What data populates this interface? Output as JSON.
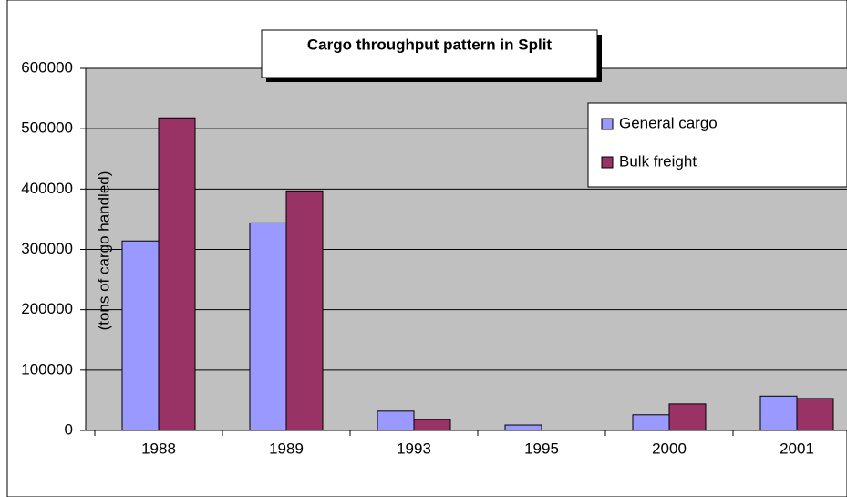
{
  "chart_data": {
    "type": "bar",
    "title": "Cargo throughput pattern in Split",
    "y_label": "(tons of cargo handled)",
    "categories": [
      "1988",
      "1989",
      "1993",
      "1995",
      "2000",
      "2001"
    ],
    "series": [
      {
        "name": "General cargo",
        "color": "#9999ff",
        "values": [
          314000,
          344000,
          32000,
          9000,
          26000,
          57000
        ]
      },
      {
        "name": "Bulk freight",
        "color": "#993366",
        "values": [
          518000,
          397000,
          18000,
          0,
          44000,
          53000
        ]
      }
    ],
    "ylim": [
      0,
      600000
    ],
    "yticks": [
      0,
      100000,
      200000,
      300000,
      400000,
      500000,
      600000
    ],
    "grid": true
  }
}
